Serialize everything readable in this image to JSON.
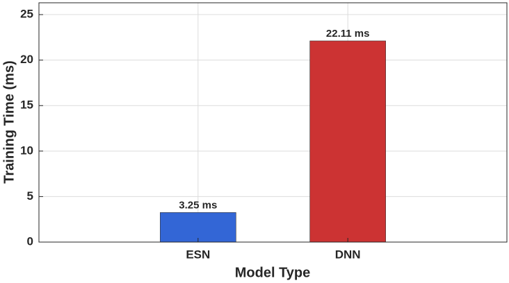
{
  "chart_data": {
    "type": "bar",
    "categories": [
      "ESN",
      "DNN"
    ],
    "values": [
      3.25,
      22.11
    ],
    "value_labels": [
      "3.25 ms",
      "22.11 ms"
    ],
    "colors": [
      "#3366d6",
      "#cc3333"
    ],
    "xlabel": "Model Type",
    "ylabel": "Training Time (ms)",
    "ylim": [
      0,
      26.3
    ],
    "yticks": [
      0,
      5,
      10,
      15,
      20,
      25
    ],
    "grid": true
  }
}
